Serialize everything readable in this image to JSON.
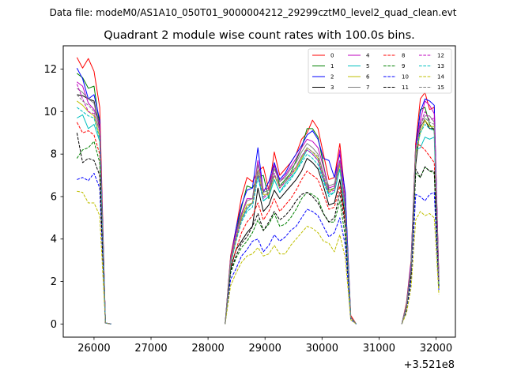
{
  "chart_data": {
    "type": "line",
    "suptitle": "Data file: modeM0/AS1A10_050T01_9000004212_29299cztM0_level2_quad_clean.evt",
    "title": "Quadrant 2 module wise count rates with 100.0s bins.",
    "xlabel": "",
    "ylabel": "",
    "x_offset_label": "+3.521e8",
    "xlim": [
      25460,
      32340
    ],
    "ylim": [
      -0.62,
      13.1
    ],
    "xticks": [
      26000,
      27000,
      28000,
      29000,
      30000,
      31000,
      32000
    ],
    "xtick_labels": [
      "26000",
      "27000",
      "28000",
      "29000",
      "30000",
      "31000",
      "32000"
    ],
    "yticks": [
      0,
      2,
      4,
      6,
      8,
      10,
      12
    ],
    "ytick_labels": [
      "0",
      "2",
      "4",
      "6",
      "8",
      "10",
      "12"
    ],
    "legend_position": "upper right",
    "legend_columns": 4,
    "segments": [
      {
        "x_start": 25700,
        "x_end": 26300
      },
      {
        "x_start": 28300,
        "x_end": 30600
      },
      {
        "x_start": 31400,
        "x_end": 32050
      }
    ],
    "series": [
      {
        "name": "0",
        "color": "#ff0000",
        "dash": false,
        "seg1": [
          12.55,
          12.05,
          12.5,
          11.9,
          10.2,
          0.05,
          0.0
        ],
        "seg2": [
          0.0,
          3.2,
          4.5,
          6.0,
          6.9,
          6.7,
          7.2,
          7.4,
          6.3,
          8.1,
          7.0,
          7.3,
          7.6,
          8.0,
          8.7,
          9.0,
          9.6,
          9.2,
          8.0,
          6.8,
          6.9,
          8.5,
          6.0,
          0.4,
          0.0
        ],
        "seg3": [
          0.0,
          1.0,
          3.0,
          8.5,
          10.6,
          10.9,
          10.1,
          10.2,
          2.2
        ]
      },
      {
        "name": "1",
        "color": "#008000",
        "dash": false,
        "seg1": [
          11.8,
          11.6,
          11.1,
          11.2,
          9.3,
          0.05,
          0.0
        ],
        "seg2": [
          0.0,
          3.1,
          4.3,
          5.5,
          6.5,
          6.4,
          6.9,
          7.0,
          5.9,
          7.5,
          6.5,
          6.8,
          7.1,
          7.7,
          8.3,
          9.2,
          9.2,
          8.8,
          7.5,
          6.3,
          6.4,
          7.7,
          5.6,
          0.3,
          0.0
        ],
        "seg3": [
          0.0,
          0.9,
          2.8,
          8.2,
          10.1,
          10.2,
          9.4,
          9.1,
          2.1
        ]
      },
      {
        "name": "2",
        "color": "#0000ff",
        "dash": false,
        "seg1": [
          12.05,
          11.55,
          10.6,
          10.8,
          9.6,
          0.05,
          0.0
        ],
        "seg2": [
          0.0,
          3.0,
          4.5,
          5.6,
          6.3,
          6.4,
          8.3,
          6.2,
          6.7,
          7.6,
          6.8,
          7.1,
          7.6,
          8.0,
          8.4,
          8.9,
          9.1,
          8.7,
          7.8,
          7.7,
          6.9,
          8.0,
          6.2,
          0.3,
          0.0
        ],
        "seg3": [
          0.0,
          0.9,
          2.9,
          8.4,
          10.0,
          10.6,
          10.5,
          10.3,
          2.0
        ]
      },
      {
        "name": "3",
        "color": "#000000",
        "dash": false,
        "seg1": [
          10.8,
          10.75,
          10.6,
          10.5,
          9.2,
          0.05,
          0.0
        ],
        "seg2": [
          0.0,
          2.6,
          3.5,
          3.9,
          4.3,
          4.6,
          6.4,
          5.3,
          5.6,
          6.3,
          5.9,
          6.2,
          6.5,
          6.8,
          7.2,
          7.8,
          7.6,
          7.3,
          6.5,
          5.6,
          5.7,
          6.8,
          5.0,
          0.3,
          0.0
        ],
        "seg3": [
          0.0,
          0.8,
          2.5,
          7.5,
          9.3,
          9.6,
          9.2,
          9.2,
          1.9
        ]
      },
      {
        "name": "4",
        "color": "#bf00bf",
        "dash": false,
        "seg1": [
          11.4,
          11.2,
          10.4,
          10.1,
          9.4,
          0.05,
          0.0
        ],
        "seg2": [
          0.0,
          3.1,
          4.3,
          5.2,
          5.9,
          5.9,
          7.7,
          6.3,
          6.4,
          7.5,
          6.7,
          7.0,
          7.4,
          7.8,
          8.3,
          8.7,
          8.6,
          8.3,
          7.4,
          6.4,
          6.5,
          8.2,
          5.5,
          0.3,
          0.0
        ],
        "seg3": [
          0.0,
          0.9,
          2.8,
          8.2,
          9.6,
          10.5,
          10.3,
          9.9,
          2.1
        ]
      },
      {
        "name": "5",
        "color": "#00bfbf",
        "dash": false,
        "seg1": [
          9.7,
          9.85,
          9.2,
          9.4,
          8.6,
          0.05,
          0.0
        ],
        "seg2": [
          0.0,
          2.8,
          4.0,
          4.9,
          5.4,
          5.7,
          7.0,
          5.8,
          6.0,
          6.8,
          6.2,
          6.6,
          6.9,
          7.2,
          7.7,
          8.2,
          8.0,
          7.7,
          6.8,
          6.1,
          6.2,
          7.3,
          5.3,
          0.3,
          0.0
        ],
        "seg3": [
          0.0,
          0.8,
          2.6,
          8.2,
          8.3,
          8.8,
          8.7,
          8.8,
          2.0
        ]
      },
      {
        "name": "6",
        "color": "#bfbf00",
        "dash": false,
        "seg1": [
          10.5,
          10.3,
          10.0,
          9.8,
          8.8,
          0.05,
          0.0
        ],
        "seg2": [
          0.0,
          2.9,
          4.0,
          5.0,
          5.6,
          5.7,
          7.2,
          6.1,
          6.1,
          7.0,
          6.4,
          6.7,
          7.0,
          7.3,
          7.8,
          8.3,
          8.1,
          7.8,
          6.9,
          6.2,
          6.4,
          7.5,
          5.3,
          0.3,
          0.0
        ],
        "seg3": [
          0.0,
          0.8,
          2.6,
          8.0,
          9.0,
          9.6,
          9.3,
          9.3,
          2.0
        ]
      },
      {
        "name": "7",
        "color": "#808080",
        "dash": false,
        "seg1": [
          11.1,
          10.9,
          10.6,
          10.4,
          9.1,
          0.05,
          0.0
        ],
        "seg2": [
          0.0,
          3.0,
          4.2,
          5.1,
          5.8,
          5.9,
          7.5,
          6.2,
          6.3,
          7.3,
          6.7,
          6.9,
          7.3,
          7.6,
          8.1,
          8.5,
          8.3,
          8.0,
          7.1,
          6.5,
          6.6,
          7.7,
          5.6,
          0.3,
          0.0
        ],
        "seg3": [
          0.0,
          0.9,
          2.7,
          8.3,
          9.4,
          9.8,
          9.8,
          9.5,
          2.1
        ]
      },
      {
        "name": "8",
        "color": "#ff0000",
        "dash": true,
        "seg1": [
          9.5,
          9.0,
          9.1,
          8.9,
          8.0,
          0.05,
          0.0
        ],
        "seg2": [
          0.0,
          2.7,
          3.5,
          4.3,
          4.8,
          5.1,
          5.7,
          4.9,
          5.3,
          5.9,
          5.3,
          5.6,
          5.9,
          6.3,
          6.8,
          7.2,
          7.0,
          6.8,
          6.1,
          5.4,
          5.5,
          6.5,
          4.8,
          0.3,
          0.0
        ],
        "seg3": [
          0.0,
          0.8,
          2.4,
          8.5,
          8.4,
          8.2,
          7.9,
          7.6,
          1.8
        ]
      },
      {
        "name": "9",
        "color": "#008000",
        "dash": true,
        "seg1": [
          7.8,
          8.2,
          8.3,
          8.6,
          7.6,
          0.05,
          0.0
        ],
        "seg2": [
          0.0,
          2.4,
          3.1,
          3.6,
          3.9,
          4.3,
          4.9,
          4.4,
          4.7,
          5.2,
          4.6,
          4.7,
          5.0,
          5.4,
          5.9,
          6.2,
          6.1,
          5.9,
          5.2,
          4.8,
          4.8,
          5.8,
          4.1,
          0.3,
          0.0
        ],
        "seg3": [
          0.0,
          0.7,
          2.2,
          7.1,
          6.9,
          7.4,
          7.2,
          7.1,
          1.7
        ]
      },
      {
        "name": "10",
        "color": "#0000ff",
        "dash": true,
        "seg1": [
          6.8,
          6.9,
          6.75,
          7.1,
          6.4,
          0.05,
          0.0
        ],
        "seg2": [
          0.0,
          2.1,
          2.6,
          3.2,
          3.5,
          3.9,
          4.0,
          3.4,
          3.7,
          4.2,
          3.9,
          4.1,
          4.4,
          4.6,
          5.0,
          5.4,
          5.3,
          5.1,
          4.6,
          4.1,
          4.3,
          5.0,
          3.7,
          0.2,
          0.0
        ],
        "seg3": [
          0.0,
          0.6,
          2.0,
          6.1,
          6.0,
          5.8,
          6.1,
          6.2,
          1.6
        ]
      },
      {
        "name": "11",
        "color": "#000000",
        "dash": true,
        "seg1": [
          9.0,
          7.6,
          7.8,
          7.7,
          7.0,
          0.05,
          0.0
        ],
        "seg2": [
          0.0,
          2.5,
          3.2,
          3.8,
          4.1,
          4.6,
          5.2,
          4.4,
          4.8,
          5.3,
          4.9,
          5.1,
          5.4,
          5.8,
          6.1,
          6.2,
          6.0,
          5.7,
          5.2,
          4.8,
          5.0,
          6.2,
          4.6,
          0.3,
          0.0
        ],
        "seg3": [
          0.0,
          0.7,
          2.3,
          7.3,
          6.9,
          7.4,
          7.2,
          7.2,
          1.8
        ]
      },
      {
        "name": "12",
        "color": "#bf00bf",
        "dash": true,
        "seg1": [
          11.3,
          10.6,
          10.0,
          9.9,
          9.1,
          0.05,
          0.0
        ],
        "seg2": [
          0.0,
          2.9,
          4.1,
          4.9,
          5.5,
          5.7,
          7.1,
          5.9,
          6.2,
          7.1,
          6.4,
          6.7,
          7.0,
          7.4,
          7.9,
          8.2,
          8.0,
          7.7,
          6.9,
          6.2,
          6.3,
          7.7,
          5.5,
          0.3,
          0.0
        ],
        "seg3": [
          0.0,
          0.8,
          2.7,
          8.3,
          9.4,
          10.0,
          9.6,
          9.7,
          2.0
        ]
      },
      {
        "name": "13",
        "color": "#00bfbf",
        "dash": true,
        "seg1": [
          10.2,
          10.0,
          9.8,
          9.7,
          8.7,
          0.05,
          0.0
        ],
        "seg2": [
          0.0,
          2.8,
          3.9,
          4.8,
          5.3,
          5.5,
          6.9,
          5.8,
          6.0,
          6.8,
          6.2,
          6.5,
          6.8,
          7.2,
          7.6,
          8.0,
          7.8,
          7.5,
          6.7,
          6.0,
          6.2,
          7.3,
          5.2,
          0.3,
          0.0
        ],
        "seg3": [
          0.0,
          0.8,
          2.6,
          8.1,
          9.0,
          9.4,
          9.2,
          9.1,
          1.9
        ]
      },
      {
        "name": "14",
        "color": "#bfbf00",
        "dash": true,
        "seg1": [
          6.25,
          6.2,
          5.7,
          5.7,
          5.1,
          0.05,
          0.0
        ],
        "seg2": [
          0.0,
          1.8,
          2.4,
          2.9,
          3.2,
          3.3,
          3.6,
          3.2,
          3.3,
          3.7,
          3.3,
          3.3,
          3.7,
          4.0,
          4.3,
          4.6,
          4.5,
          4.3,
          3.9,
          3.8,
          3.4,
          4.2,
          3.1,
          0.2,
          0.0
        ],
        "seg3": [
          0.0,
          0.5,
          1.7,
          4.9,
          5.3,
          5.1,
          5.2,
          5.0,
          1.4
        ]
      },
      {
        "name": "15",
        "color": "#808080",
        "dash": true,
        "seg1": [
          10.8,
          10.5,
          10.3,
          10.0,
          9.0,
          0.05,
          0.0
        ],
        "seg2": [
          0.0,
          2.9,
          4.0,
          4.9,
          5.5,
          5.7,
          7.2,
          6.0,
          6.2,
          7.0,
          6.5,
          6.7,
          7.1,
          7.4,
          7.9,
          8.3,
          8.1,
          7.9,
          7.0,
          6.3,
          6.4,
          7.6,
          5.4,
          0.3,
          0.0
        ],
        "seg3": [
          0.0,
          0.8,
          2.6,
          8.2,
          9.2,
          9.7,
          9.5,
          9.4,
          2.0
        ]
      }
    ]
  }
}
